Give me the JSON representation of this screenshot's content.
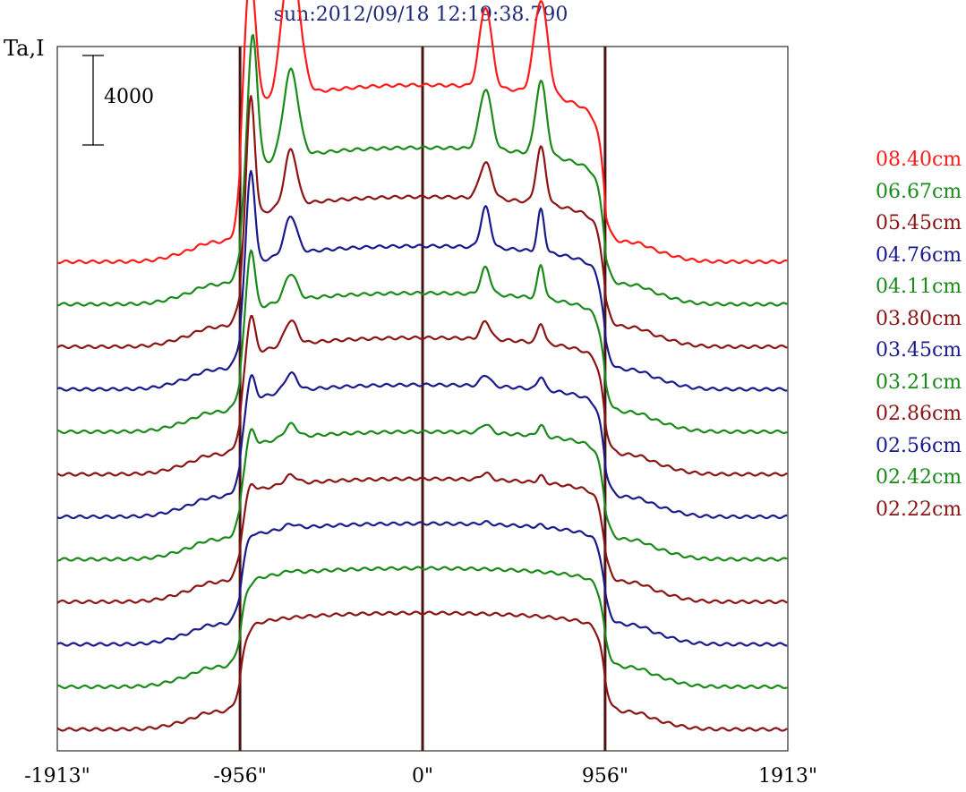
{
  "chart_data": {
    "type": "line",
    "title": "sun:2012/09/18 12:19:38.790",
    "ylabel": "Ta,I",
    "scale_bar_label": "4000",
    "scale_bar_value": 4000,
    "xlim": [
      -1913,
      1913
    ],
    "x_ticks": [
      {
        "value": -1913,
        "label": "-1913\""
      },
      {
        "value": -956,
        "label": "-956\""
      },
      {
        "value": 0,
        "label": "0\""
      },
      {
        "value": 956,
        "label": "956\""
      },
      {
        "value": 1913,
        "label": "1913\""
      }
    ],
    "vertical_lines": [
      -956,
      0,
      956
    ],
    "offset_between_series": 1900,
    "grid": false,
    "legend_position": "right",
    "series": [
      {
        "name": "08.40cm",
        "color": "#ff1a1a",
        "baseline": 600,
        "limb": 3000,
        "disk": 7300,
        "features": [
          [
            -906,
            6600,
            45
          ],
          [
            -690,
            6300,
            65
          ],
          [
            330,
            3600,
            45
          ],
          [
            620,
            4200,
            50
          ]
        ]
      },
      {
        "name": "06.67cm",
        "color": "#1a8a1a",
        "baseline": 600,
        "limb": 3000,
        "disk": 6400,
        "features": [
          [
            -890,
            6200,
            35
          ],
          [
            -690,
            3900,
            55
          ],
          [
            330,
            2700,
            45
          ],
          [
            620,
            3300,
            40
          ]
        ]
      },
      {
        "name": "05.45cm",
        "color": "#8b1414",
        "baseline": 600,
        "limb": 3000,
        "disk": 6100,
        "features": [
          [
            -900,
            5700,
            30
          ],
          [
            -690,
            2500,
            45
          ],
          [
            330,
            1600,
            45
          ],
          [
            620,
            2500,
            35
          ]
        ]
      },
      {
        "name": "04.76cm",
        "color": "#1a1a8c",
        "baseline": 600,
        "limb": 3000,
        "disk": 5800,
        "features": [
          [
            -900,
            4500,
            30
          ],
          [
            -690,
            1700,
            45
          ],
          [
            330,
            1800,
            35
          ],
          [
            620,
            1900,
            25
          ]
        ]
      },
      {
        "name": "04.11cm",
        "color": "#1a8a1a",
        "baseline": 600,
        "limb": 3000,
        "disk": 5600,
        "features": [
          [
            -900,
            3000,
            30
          ],
          [
            -690,
            1200,
            45
          ],
          [
            330,
            1200,
            35
          ],
          [
            620,
            1500,
            25
          ]
        ]
      },
      {
        "name": "03.80cm",
        "color": "#8b1414",
        "baseline": 600,
        "limb": 3000,
        "disk": 5500,
        "features": [
          [
            -900,
            2000,
            30
          ],
          [
            -690,
            1100,
            45
          ],
          [
            330,
            800,
            35
          ],
          [
            620,
            900,
            25
          ]
        ]
      },
      {
        "name": "03.45cm",
        "color": "#1a1a8c",
        "baseline": 600,
        "limb": 3000,
        "disk": 5300,
        "features": [
          [
            -900,
            1300,
            30
          ],
          [
            -690,
            800,
            45
          ],
          [
            330,
            500,
            35
          ],
          [
            620,
            600,
            25
          ]
        ]
      },
      {
        "name": "03.21cm",
        "color": "#1a8a1a",
        "baseline": 600,
        "limb": 3000,
        "disk": 5100,
        "features": [
          [
            -900,
            900,
            30
          ],
          [
            -690,
            600,
            45
          ],
          [
            330,
            400,
            35
          ],
          [
            620,
            500,
            25
          ]
        ]
      },
      {
        "name": "02.86cm",
        "color": "#8b1414",
        "baseline": 600,
        "limb": 3000,
        "disk": 4900,
        "features": [
          [
            -900,
            500,
            30
          ],
          [
            -690,
            400,
            45
          ],
          [
            330,
            300,
            35
          ],
          [
            620,
            300,
            25
          ]
        ]
      },
      {
        "name": "02.56cm",
        "color": "#1a1a8c",
        "baseline": 600,
        "limb": 3000,
        "disk": 4800,
        "features": [
          [
            -900,
            200,
            30
          ],
          [
            -690,
            200,
            45
          ],
          [
            330,
            100,
            35
          ],
          [
            620,
            100,
            25
          ]
        ]
      },
      {
        "name": "02.42cm",
        "color": "#1a8a1a",
        "baseline": 600,
        "limb": 3000,
        "disk": 4700,
        "features": [
          [
            -690,
            100,
            45
          ]
        ]
      },
      {
        "name": "02.22cm",
        "color": "#8b1414",
        "baseline": 500,
        "limb": 3000,
        "disk": 4700,
        "features": []
      }
    ]
  }
}
